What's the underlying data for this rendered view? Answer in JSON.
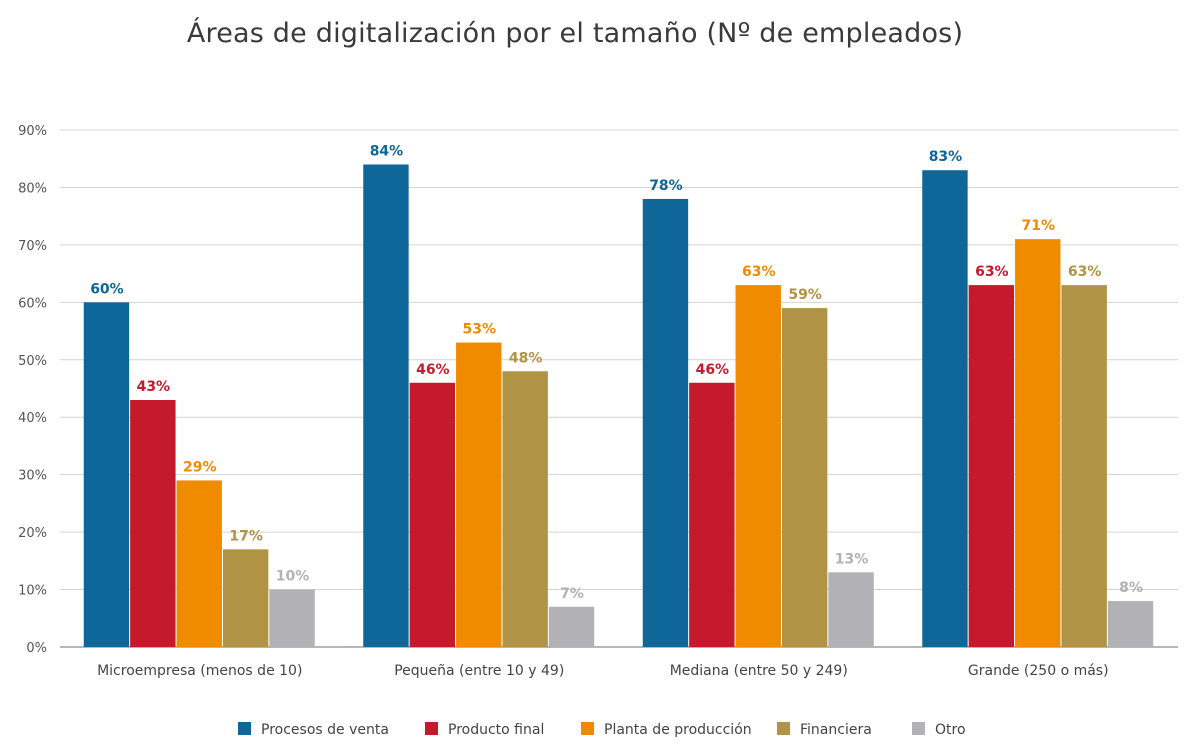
{
  "chart_data": {
    "type": "bar",
    "title": "Áreas de digitalización por el tamaño (Nº de empleados)",
    "xlabel": "",
    "ylabel": "",
    "categories": [
      "Microempresa (menos de 10)",
      "Pequeña (entre 10 y 49)",
      "Mediana (entre 50 y 249)",
      "Grande (250 o más)"
    ],
    "series": [
      {
        "name": "Procesos de venta",
        "color": "#0e6699",
        "values": [
          60,
          84,
          78,
          83
        ]
      },
      {
        "name": "Producto final",
        "color": "#c41a2b",
        "values": [
          43,
          46,
          46,
          63
        ]
      },
      {
        "name": "Planta de producción",
        "color": "#f08b00",
        "values": [
          29,
          53,
          63,
          71
        ]
      },
      {
        "name": "Financiera",
        "color": "#b09344",
        "values": [
          17,
          48,
          59,
          63
        ]
      },
      {
        "name": "Otro",
        "color": "#b1b1b6",
        "values": [
          10,
          7,
          13,
          8
        ]
      }
    ],
    "ylim": [
      0,
      90
    ],
    "yticks": [
      "0%",
      "10%",
      "20%",
      "30%",
      "40%",
      "50%",
      "60%",
      "70%",
      "80%",
      "90%"
    ],
    "data_labels": [
      [
        "60%",
        "84%",
        "78%",
        "83%"
      ],
      [
        "43%",
        "46%",
        "46%",
        "63%"
      ],
      [
        "29%",
        "53%",
        "63%",
        "71%"
      ],
      [
        "17%",
        "48%",
        "59%",
        "63%"
      ],
      [
        "10%",
        "7%",
        "13%",
        "8%"
      ]
    ],
    "label_colors": [
      "#0e6699",
      "#c41a2b",
      "#f08b00",
      "#b09344",
      "#b1b1b6"
    ],
    "grid": true,
    "legend_position": "bottom"
  }
}
